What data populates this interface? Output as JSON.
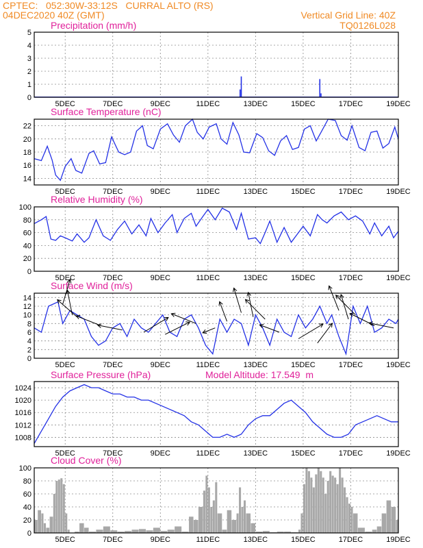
{
  "header": {
    "location": "CPTEC:   052:30W-33:12S   CURRAL ALTO (RS)",
    "init": "04DEC2020 40Z (GMT)",
    "vgrid": "Vertical Grid Line: 40Z",
    "code": "TQ0126L028"
  },
  "x_tick_labels": [
    "5DEC",
    "7DEC",
    "9DEC",
    "11DEC",
    "13DEC",
    "15DEC",
    "17DEC",
    "19DEC"
  ],
  "colors": {
    "line": "#2230e6",
    "cloud_fill": "#a8a8a8",
    "title": "#e0209a",
    "header": "#f08a24"
  },
  "chart_data": [
    {
      "type": "bar",
      "title": "Precipitation (mm/h)",
      "xlim": [
        3.7,
        19
      ],
      "ylim": [
        0,
        5
      ],
      "yticks": [
        "0",
        "1",
        "2",
        "3",
        "4",
        "5"
      ],
      "x": [
        4,
        5,
        6,
        7,
        8,
        9,
        10,
        11,
        12,
        12.35,
        12.4,
        13,
        14,
        15,
        15.7,
        15.75,
        16,
        17,
        18,
        19
      ],
      "values": [
        0,
        0,
        0,
        0,
        0,
        0,
        0,
        0.05,
        0.05,
        0.6,
        1.6,
        0,
        0,
        0.05,
        1.4,
        0.3,
        0,
        0,
        0,
        0
      ]
    },
    {
      "type": "line",
      "title": "Surface Temperature (nC)",
      "xlim": [
        3.7,
        19
      ],
      "ylim": [
        13,
        23
      ],
      "yticks": [
        "14",
        "16",
        "18",
        "20",
        "22"
      ],
      "x": [
        3.7,
        4.0,
        4.25,
        4.45,
        4.6,
        4.8,
        5.0,
        5.25,
        5.45,
        5.7,
        6.0,
        6.2,
        6.45,
        6.7,
        6.95,
        7.25,
        7.5,
        7.75,
        8.0,
        8.25,
        8.45,
        8.7,
        9.0,
        9.3,
        9.55,
        9.8,
        10.05,
        10.35,
        10.55,
        10.8,
        11.05,
        11.35,
        11.55,
        11.8,
        12.05,
        12.3,
        12.5,
        12.75,
        13.05,
        13.3,
        13.55,
        13.8,
        14.05,
        14.3,
        14.55,
        14.8,
        15.05,
        15.3,
        15.55,
        15.75,
        16.05,
        16.35,
        16.6,
        16.85,
        17.05,
        17.35,
        17.6,
        17.85,
        18.1,
        18.35,
        18.6,
        18.85,
        19.0
      ],
      "values": [
        17.0,
        16.7,
        18.9,
        16.8,
        14.5,
        13.7,
        15.8,
        17.0,
        15.2,
        14.8,
        17.8,
        18.2,
        16.2,
        16.4,
        20.3,
        18.0,
        17.6,
        18.0,
        21.2,
        22.0,
        19.0,
        18.5,
        21.5,
        22.3,
        20.6,
        19.5,
        22.0,
        23.0,
        21.0,
        20.0,
        21.8,
        22.3,
        20.0,
        19.2,
        22.5,
        20.6,
        18.0,
        17.9,
        20.8,
        20.2,
        18.2,
        17.5,
        19.7,
        20.5,
        18.4,
        18.7,
        21.5,
        22.0,
        19.7,
        21.0,
        23.0,
        22.8,
        20.5,
        19.8,
        22.0,
        18.7,
        18.2,
        21.0,
        21.2,
        18.6,
        19.3,
        21.8,
        20.0
      ]
    },
    {
      "type": "line",
      "title": "Relative Humidity (%)",
      "xlim": [
        3.7,
        19
      ],
      "ylim": [
        0,
        100
      ],
      "yticks": [
        "0",
        "20",
        "40",
        "60",
        "80",
        "100"
      ],
      "x": [
        3.7,
        4.0,
        4.2,
        4.4,
        4.6,
        4.8,
        5.0,
        5.3,
        5.5,
        5.8,
        6.0,
        6.3,
        6.6,
        6.9,
        7.2,
        7.5,
        7.8,
        8.1,
        8.4,
        8.6,
        8.9,
        9.2,
        9.5,
        9.7,
        10.0,
        10.3,
        10.5,
        10.8,
        11.0,
        11.3,
        11.6,
        11.9,
        12.2,
        12.4,
        12.7,
        13.0,
        13.2,
        13.4,
        13.6,
        13.9,
        14.2,
        14.5,
        14.8,
        15.0,
        15.3,
        15.6,
        15.8,
        16.0,
        16.3,
        16.6,
        16.9,
        17.2,
        17.5,
        17.8,
        18.0,
        18.3,
        18.6,
        18.8,
        19.0
      ],
      "values": [
        74,
        80,
        85,
        50,
        48,
        55,
        52,
        47,
        58,
        45,
        52,
        80,
        55,
        48,
        65,
        78,
        58,
        72,
        55,
        82,
        60,
        75,
        88,
        60,
        82,
        90,
        70,
        86,
        96,
        80,
        98,
        92,
        65,
        90,
        50,
        52,
        43,
        60,
        78,
        45,
        68,
        45,
        60,
        70,
        55,
        88,
        80,
        75,
        86,
        92,
        80,
        86,
        78,
        58,
        75,
        55,
        70,
        52,
        62
      ]
    },
    {
      "type": "line",
      "title": "Surface Wind (m/s)",
      "xlim": [
        3.7,
        19
      ],
      "ylim": [
        0,
        15
      ],
      "yticks": [
        "0",
        "2",
        "4",
        "6",
        "8",
        "10",
        "12",
        "14"
      ],
      "x": [
        3.7,
        4.0,
        4.3,
        4.7,
        4.9,
        5.2,
        5.5,
        5.8,
        6.1,
        6.4,
        6.7,
        7.0,
        7.3,
        7.6,
        7.9,
        8.2,
        8.5,
        8.8,
        9.1,
        9.4,
        9.7,
        10.0,
        10.3,
        10.6,
        10.9,
        11.2,
        11.5,
        11.8,
        12.1,
        12.4,
        12.7,
        13.0,
        13.3,
        13.6,
        13.9,
        14.2,
        14.5,
        14.8,
        15.1,
        15.4,
        15.7,
        16.0,
        16.2,
        16.5,
        16.8,
        17.1,
        17.4,
        17.7,
        18.0,
        18.3,
        18.6,
        18.9,
        19.0
      ],
      "values": [
        7,
        6,
        12,
        13,
        8,
        11,
        10,
        9,
        5,
        3,
        4,
        7,
        8,
        5,
        9,
        7,
        6,
        8,
        10,
        6,
        5,
        9,
        10,
        7,
        3,
        1,
        9,
        6,
        9,
        8,
        3,
        10,
        7,
        3,
        9,
        6,
        5,
        10,
        7,
        9,
        12,
        8,
        10,
        5,
        1,
        12,
        8,
        12,
        6,
        7,
        9,
        8,
        9
      ]
    },
    {
      "type": "line",
      "title": "Surface Pressure (hPa)",
      "annotation": "Model Altitude: 17.549  m",
      "xlim": [
        3.7,
        19
      ],
      "ylim": [
        1005,
        1026
      ],
      "yticks": [
        "1008",
        "1012",
        "1016",
        "1020",
        "1024"
      ],
      "x": [
        3.7,
        4.0,
        4.3,
        4.6,
        4.9,
        5.2,
        5.5,
        5.8,
        6.1,
        6.4,
        6.7,
        7.0,
        7.3,
        7.6,
        7.9,
        8.2,
        8.5,
        8.8,
        9.1,
        9.4,
        9.7,
        10.0,
        10.3,
        10.6,
        10.9,
        11.2,
        11.5,
        11.8,
        12.1,
        12.4,
        12.7,
        13.0,
        13.3,
        13.6,
        13.9,
        14.2,
        14.5,
        14.8,
        15.1,
        15.4,
        15.7,
        16.0,
        16.3,
        16.6,
        16.9,
        17.2,
        17.5,
        17.8,
        18.1,
        18.4,
        18.7,
        19.0
      ],
      "values": [
        1006,
        1010,
        1014,
        1018,
        1021,
        1023,
        1024,
        1025,
        1024,
        1024,
        1023,
        1022,
        1022,
        1021,
        1021,
        1020,
        1020,
        1019,
        1018,
        1017,
        1016,
        1015,
        1013,
        1012,
        1010,
        1008,
        1008,
        1009,
        1008,
        1009,
        1012,
        1014,
        1015,
        1015,
        1017,
        1019,
        1020,
        1018,
        1016,
        1013,
        1011,
        1009,
        1008,
        1008,
        1009,
        1012,
        1013,
        1014,
        1015,
        1014,
        1013,
        1013
      ]
    },
    {
      "type": "bar",
      "title": "Cloud Cover (%)",
      "xlim": [
        3.7,
        19
      ],
      "ylim": [
        0,
        100
      ],
      "yticks": [
        "0",
        "20",
        "40",
        "60",
        "80",
        "100"
      ],
      "x": [
        3.7,
        3.85,
        4.0,
        4.1,
        4.2,
        4.35,
        4.5,
        4.6,
        4.7,
        4.8,
        4.9,
        5.0,
        5.1,
        5.2,
        5.4,
        5.6,
        5.8,
        6.0,
        6.3,
        6.6,
        6.9,
        7.2,
        7.5,
        7.8,
        8.1,
        8.4,
        8.7,
        9.0,
        9.3,
        9.6,
        9.9,
        10.2,
        10.4,
        10.6,
        10.8,
        10.9,
        11.0,
        11.1,
        11.2,
        11.3,
        11.4,
        11.6,
        11.8,
        12.0,
        12.2,
        12.3,
        12.4,
        12.5,
        12.6,
        12.8,
        13.0,
        13.3,
        13.6,
        13.9,
        14.2,
        14.5,
        14.8,
        14.9,
        15.0,
        15.1,
        15.2,
        15.3,
        15.4,
        15.5,
        15.6,
        15.7,
        15.8,
        15.9,
        16.0,
        16.1,
        16.2,
        16.3,
        16.4,
        16.5,
        16.6,
        16.7,
        16.8,
        16.9,
        17.0,
        17.1,
        17.3,
        17.6,
        17.9,
        18.1,
        18.3,
        18.5,
        18.7,
        18.9
      ],
      "values": [
        20,
        35,
        30,
        15,
        8,
        25,
        60,
        80,
        82,
        84,
        75,
        30,
        5,
        0,
        2,
        15,
        8,
        2,
        5,
        10,
        4,
        2,
        3,
        5,
        6,
        4,
        8,
        3,
        5,
        10,
        2,
        25,
        20,
        40,
        65,
        88,
        70,
        40,
        50,
        78,
        30,
        5,
        35,
        20,
        30,
        70,
        40,
        50,
        30,
        15,
        2,
        3,
        1,
        2,
        2,
        1,
        5,
        30,
        75,
        100,
        95,
        85,
        70,
        90,
        100,
        95,
        85,
        60,
        80,
        95,
        88,
        85,
        75,
        100,
        85,
        70,
        55,
        45,
        40,
        30,
        8,
        2,
        5,
        10,
        30,
        50,
        40,
        20
      ]
    }
  ],
  "wind_arrows": [
    {
      "x": 4.9,
      "y": 12.5,
      "u": 0.3,
      "v": 1.0
    },
    {
      "x": 5.3,
      "y": 10.0,
      "u": -0.2,
      "v": 1.0
    },
    {
      "x": 5.5,
      "y": 9.5,
      "u": -0.8,
      "v": 0.7
    },
    {
      "x": 6.5,
      "y": 7.5,
      "u": -1.0,
      "v": 0.4
    },
    {
      "x": 7.4,
      "y": 6.5,
      "u": -1.0,
      "v": 0.2
    },
    {
      "x": 8.3,
      "y": 6.0,
      "u": 1.0,
      "v": 0.6
    },
    {
      "x": 9.2,
      "y": 5.5,
      "u": 1.0,
      "v": 0.5
    },
    {
      "x": 10.5,
      "y": 8.0,
      "u": -1.0,
      "v": 0.4
    },
    {
      "x": 11.3,
      "y": 7.0,
      "u": -0.5,
      "v": -0.2
    },
    {
      "x": 11.8,
      "y": 8.5,
      "u": -0.3,
      "v": 0.8
    },
    {
      "x": 12.4,
      "y": 10.5,
      "u": -0.3,
      "v": 1.0
    },
    {
      "x": 12.9,
      "y": 9.5,
      "u": -0.2,
      "v": 1.0
    },
    {
      "x": 13.4,
      "y": 9.0,
      "u": -0.8,
      "v": 0.8
    },
    {
      "x": 14.0,
      "y": 6.0,
      "u": -0.8,
      "v": 0.3
    },
    {
      "x": 14.8,
      "y": 4.5,
      "u": 1.0,
      "v": 0.6
    },
    {
      "x": 15.6,
      "y": 3.5,
      "u": 0.6,
      "v": 0.8
    },
    {
      "x": 16.5,
      "y": 11.0,
      "u": -0.4,
      "v": 1.0
    },
    {
      "x": 16.9,
      "y": 9.0,
      "u": -0.3,
      "v": 1.0
    },
    {
      "x": 17.2,
      "y": 10.0,
      "u": -0.8,
      "v": 0.8
    },
    {
      "x": 18.0,
      "y": 7.5,
      "u": -1.0,
      "v": 0.5
    },
    {
      "x": 18.8,
      "y": 7.0,
      "u": -1.0,
      "v": 0.2
    }
  ]
}
